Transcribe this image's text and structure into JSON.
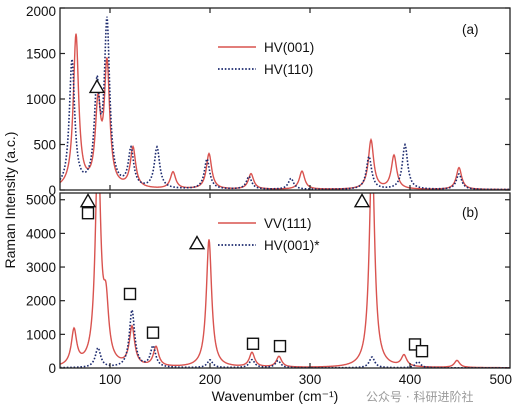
{
  "chart_data": [
    {
      "type": "line",
      "panel_label": "(a)",
      "xlim": [
        50,
        500
      ],
      "ylim": [
        0,
        2000
      ],
      "x_ticks": [],
      "y_ticks": [
        0,
        500,
        1000,
        1500,
        2000
      ],
      "legend": {
        "position": "top-center"
      },
      "series": [
        {
          "name": "HV(001)",
          "style": "solid",
          "color": "#d9534f",
          "peaks": [
            {
              "x": 66,
              "y": 1680
            },
            {
              "x": 88,
              "y": 870
            },
            {
              "x": 97,
              "y": 1330
            },
            {
              "x": 123,
              "y": 440
            },
            {
              "x": 163,
              "y": 185
            },
            {
              "x": 199,
              "y": 390
            },
            {
              "x": 241,
              "y": 170
            },
            {
              "x": 292,
              "y": 200
            },
            {
              "x": 361,
              "y": 540
            },
            {
              "x": 384,
              "y": 370
            },
            {
              "x": 449,
              "y": 240
            }
          ]
        },
        {
          "name": "HV(110)",
          "style": "dotted",
          "color": "#1c2a6e",
          "peaks": [
            {
              "x": 62,
              "y": 1400
            },
            {
              "x": 87,
              "y": 1060
            },
            {
              "x": 97,
              "y": 1780
            },
            {
              "x": 121,
              "y": 420
            },
            {
              "x": 147,
              "y": 450
            },
            {
              "x": 197,
              "y": 330
            },
            {
              "x": 239,
              "y": 140
            },
            {
              "x": 281,
              "y": 120
            },
            {
              "x": 359,
              "y": 360
            },
            {
              "x": 395,
              "y": 490
            },
            {
              "x": 449,
              "y": 170
            }
          ]
        }
      ],
      "markers": [
        {
          "shape": "triangle",
          "x": 87,
          "y": 1130
        }
      ]
    },
    {
      "type": "line",
      "panel_label": "(b)",
      "xlabel": "Wavenumber (cm⁻¹)",
      "xlim": [
        50,
        500
      ],
      "ylim": [
        0,
        5200
      ],
      "x_ticks": [
        100,
        200,
        300,
        400,
        500
      ],
      "y_ticks": [
        0,
        1000,
        2000,
        3000,
        4000,
        5000
      ],
      "legend": {
        "position": "top-center"
      },
      "series": [
        {
          "name": "VV(111)",
          "style": "solid",
          "color": "#d9534f",
          "peaks": [
            {
              "x": 64,
              "y": 1050
            },
            {
              "x": 88,
              "y": 6500
            },
            {
              "x": 96,
              "y": 1600
            },
            {
              "x": 122,
              "y": 1150
            },
            {
              "x": 146,
              "y": 580
            },
            {
              "x": 199,
              "y": 3800
            },
            {
              "x": 242,
              "y": 430
            },
            {
              "x": 269,
              "y": 320
            },
            {
              "x": 362,
              "y": 6500
            },
            {
              "x": 394,
              "y": 330
            },
            {
              "x": 447,
              "y": 210
            }
          ]
        },
        {
          "name": "HV(001)*",
          "style": "dotted",
          "color": "#1c2a6e",
          "peaks": [
            {
              "x": 88,
              "y": 580
            },
            {
              "x": 122,
              "y": 1700
            },
            {
              "x": 143,
              "y": 620
            },
            {
              "x": 200,
              "y": 230
            },
            {
              "x": 242,
              "y": 240
            },
            {
              "x": 268,
              "y": 210
            },
            {
              "x": 362,
              "y": 320
            },
            {
              "x": 408,
              "y": 180
            }
          ]
        }
      ],
      "markers": [
        {
          "shape": "triangle",
          "x": 78,
          "y": 4950
        },
        {
          "shape": "square",
          "x": 78,
          "y": 4600
        },
        {
          "shape": "square",
          "x": 120,
          "y": 2200
        },
        {
          "shape": "square",
          "x": 143,
          "y": 1050
        },
        {
          "shape": "triangle",
          "x": 187,
          "y": 3700
        },
        {
          "shape": "square",
          "x": 243,
          "y": 720
        },
        {
          "shape": "square",
          "x": 270,
          "y": 650
        },
        {
          "shape": "triangle",
          "x": 352,
          "y": 4950
        },
        {
          "shape": "square",
          "x": 405,
          "y": 700
        },
        {
          "shape": "square",
          "x": 412,
          "y": 500
        }
      ]
    }
  ],
  "ylabel": "Raman Intensity  (a.c.)",
  "watermark": "公众号 · 科研进阶社"
}
